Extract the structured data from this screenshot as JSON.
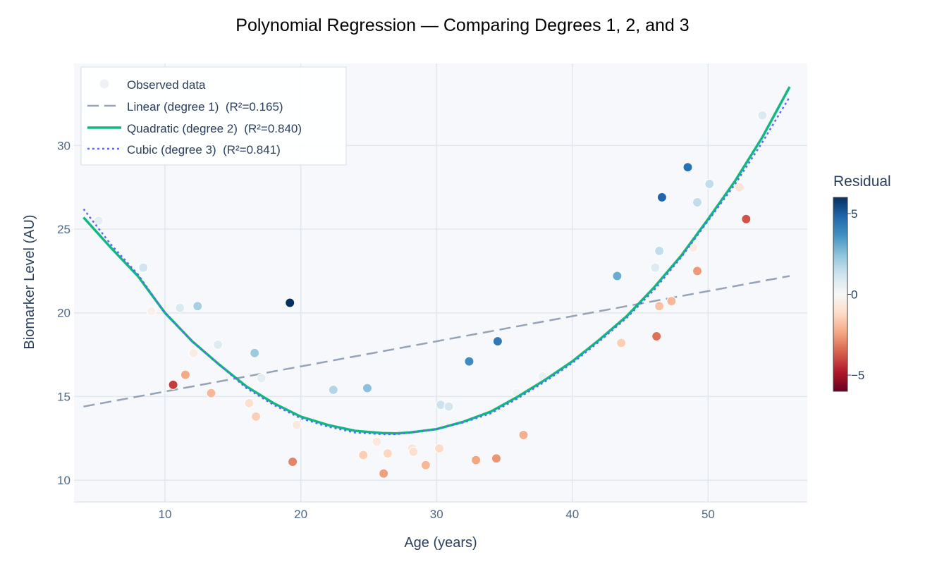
{
  "chart_data": {
    "type": "scatter",
    "title": "Polynomial Regression — Comparing Degrees 1, 2, and 3",
    "xlabel": "Age (years)",
    "ylabel": "Biomarker Level (AU)",
    "xlim": [
      3.3,
      57.3
    ],
    "ylim": [
      8.7,
      34.9
    ],
    "xticks": [
      10,
      20,
      30,
      40,
      50
    ],
    "yticks": [
      10,
      15,
      20,
      25,
      30
    ],
    "colorbar": {
      "title": "Residual",
      "range": [
        -6,
        6
      ],
      "ticks": [
        5,
        0,
        -5
      ],
      "tick_labels": [
        "5",
        "0",
        "−5"
      ]
    },
    "legend": {
      "position": "top-left",
      "entries": [
        {
          "key": "observed",
          "label": "Observed data"
        },
        {
          "key": "linear",
          "label": "Linear (degree 1)  (R²=0.165)"
        },
        {
          "key": "quadratic",
          "label": "Quadratic (degree 2)  (R²=0.840)"
        },
        {
          "key": "cubic",
          "label": "Cubic (degree 3)  (R²=0.841)"
        }
      ]
    },
    "points": [
      {
        "x": 5.1,
        "y": 25.5,
        "r": 0.6
      },
      {
        "x": 8.4,
        "y": 22.7,
        "r": 1.2
      },
      {
        "x": 9.0,
        "y": 20.1,
        "r": -0.3
      },
      {
        "x": 10.6,
        "y": 15.7,
        "r": -4.2
      },
      {
        "x": 11.1,
        "y": 20.3,
        "r": 0.9
      },
      {
        "x": 11.5,
        "y": 16.3,
        "r": -2.3
      },
      {
        "x": 12.1,
        "y": 17.6,
        "r": -0.5
      },
      {
        "x": 12.4,
        "y": 20.4,
        "r": 2.0
      },
      {
        "x": 13.4,
        "y": 15.2,
        "r": -2.0
      },
      {
        "x": 13.9,
        "y": 18.1,
        "r": 0.8
      },
      {
        "x": 16.2,
        "y": 14.6,
        "r": -1.0
      },
      {
        "x": 16.6,
        "y": 17.6,
        "r": 2.2
      },
      {
        "x": 16.7,
        "y": 13.8,
        "r": -1.5
      },
      {
        "x": 17.1,
        "y": 16.1,
        "r": 0.7
      },
      {
        "x": 19.2,
        "y": 20.6,
        "r": 6.0
      },
      {
        "x": 19.4,
        "y": 11.1,
        "r": -3.0
      },
      {
        "x": 19.7,
        "y": 13.3,
        "r": -0.6
      },
      {
        "x": 22.4,
        "y": 15.4,
        "r": 1.8
      },
      {
        "x": 24.6,
        "y": 11.5,
        "r": -1.5
      },
      {
        "x": 24.9,
        "y": 15.5,
        "r": 2.5
      },
      {
        "x": 25.6,
        "y": 12.3,
        "r": -0.7
      },
      {
        "x": 26.1,
        "y": 10.4,
        "r": -2.5
      },
      {
        "x": 26.4,
        "y": 11.6,
        "r": -1.3
      },
      {
        "x": 28.2,
        "y": 11.9,
        "r": -0.8
      },
      {
        "x": 28.3,
        "y": 11.7,
        "r": -1.0
      },
      {
        "x": 29.2,
        "y": 10.9,
        "r": -2.0
      },
      {
        "x": 30.2,
        "y": 11.9,
        "r": -1.2
      },
      {
        "x": 30.3,
        "y": 14.5,
        "r": 1.3
      },
      {
        "x": 30.9,
        "y": 14.4,
        "r": 1.1
      },
      {
        "x": 32.4,
        "y": 17.1,
        "r": 3.8
      },
      {
        "x": 32.9,
        "y": 11.2,
        "r": -2.4
      },
      {
        "x": 34.4,
        "y": 11.3,
        "r": -2.7
      },
      {
        "x": 34.5,
        "y": 18.3,
        "r": 4.3
      },
      {
        "x": 35.9,
        "y": 15.2,
        "r": 0.3
      },
      {
        "x": 36.4,
        "y": 12.7,
        "r": -2.2
      },
      {
        "x": 37.8,
        "y": 16.2,
        "r": 0.5
      },
      {
        "x": 43.3,
        "y": 22.2,
        "r": 3.0
      },
      {
        "x": 43.6,
        "y": 18.2,
        "r": -1.5
      },
      {
        "x": 46.1,
        "y": 22.7,
        "r": 0.8
      },
      {
        "x": 46.2,
        "y": 18.6,
        "r": -3.3
      },
      {
        "x": 46.4,
        "y": 23.7,
        "r": 1.5
      },
      {
        "x": 46.4,
        "y": 20.4,
        "r": -1.8
      },
      {
        "x": 46.6,
        "y": 26.9,
        "r": 4.8
      },
      {
        "x": 47.3,
        "y": 20.7,
        "r": -2.0
      },
      {
        "x": 48.5,
        "y": 28.7,
        "r": 4.5
      },
      {
        "x": 48.9,
        "y": 23.9,
        "r": -0.5
      },
      {
        "x": 49.2,
        "y": 26.6,
        "r": 1.5
      },
      {
        "x": 49.2,
        "y": 22.5,
        "r": -2.6
      },
      {
        "x": 50.1,
        "y": 27.7,
        "r": 1.5
      },
      {
        "x": 52.3,
        "y": 27.5,
        "r": -0.8
      },
      {
        "x": 52.8,
        "y": 25.6,
        "r": -3.8
      },
      {
        "x": 54.0,
        "y": 31.8,
        "r": 0.9
      }
    ],
    "fits": {
      "linear": [
        {
          "x": 4,
          "y": 14.4
        },
        {
          "x": 56,
          "y": 22.2
        }
      ],
      "quadratic": [
        {
          "x": 4,
          "y": 25.7
        },
        {
          "x": 6,
          "y": 23.9
        },
        {
          "x": 8,
          "y": 22.2
        },
        {
          "x": 10,
          "y": 20.0
        },
        {
          "x": 12,
          "y": 18.3
        },
        {
          "x": 14,
          "y": 16.9
        },
        {
          "x": 16,
          "y": 15.6
        },
        {
          "x": 18,
          "y": 14.6
        },
        {
          "x": 20,
          "y": 13.8
        },
        {
          "x": 22,
          "y": 13.3
        },
        {
          "x": 24,
          "y": 12.95
        },
        {
          "x": 26,
          "y": 12.82
        },
        {
          "x": 27,
          "y": 12.8
        },
        {
          "x": 28,
          "y": 12.85
        },
        {
          "x": 30,
          "y": 13.05
        },
        {
          "x": 32,
          "y": 13.5
        },
        {
          "x": 34,
          "y": 14.1
        },
        {
          "x": 36,
          "y": 15.0
        },
        {
          "x": 38,
          "y": 16.0
        },
        {
          "x": 40,
          "y": 17.1
        },
        {
          "x": 42,
          "y": 18.4
        },
        {
          "x": 44,
          "y": 19.8
        },
        {
          "x": 46,
          "y": 21.5
        },
        {
          "x": 48,
          "y": 23.4
        },
        {
          "x": 50,
          "y": 25.6
        },
        {
          "x": 52,
          "y": 27.9
        },
        {
          "x": 54,
          "y": 30.5
        },
        {
          "x": 56,
          "y": 33.5
        }
      ],
      "cubic": [
        {
          "x": 4,
          "y": 26.2
        },
        {
          "x": 6,
          "y": 24.1
        },
        {
          "x": 8,
          "y": 22.3
        },
        {
          "x": 10,
          "y": 20.0
        },
        {
          "x": 12,
          "y": 18.3
        },
        {
          "x": 14,
          "y": 16.9
        },
        {
          "x": 16,
          "y": 15.5
        },
        {
          "x": 18,
          "y": 14.5
        },
        {
          "x": 20,
          "y": 13.7
        },
        {
          "x": 22,
          "y": 13.2
        },
        {
          "x": 24,
          "y": 12.85
        },
        {
          "x": 26,
          "y": 12.75
        },
        {
          "x": 27,
          "y": 12.75
        },
        {
          "x": 28,
          "y": 12.83
        },
        {
          "x": 30,
          "y": 13.05
        },
        {
          "x": 32,
          "y": 13.45
        },
        {
          "x": 34,
          "y": 14.0
        },
        {
          "x": 36,
          "y": 14.9
        },
        {
          "x": 38,
          "y": 15.9
        },
        {
          "x": 40,
          "y": 17.0
        },
        {
          "x": 42,
          "y": 18.3
        },
        {
          "x": 44,
          "y": 19.7
        },
        {
          "x": 46,
          "y": 21.35
        },
        {
          "x": 48,
          "y": 23.3
        },
        {
          "x": 50,
          "y": 25.5
        },
        {
          "x": 52,
          "y": 27.7
        },
        {
          "x": 54,
          "y": 30.2
        },
        {
          "x": 56,
          "y": 32.9
        }
      ]
    },
    "colors": {
      "plot_bg": "#f6f8fb",
      "grid": "#e1e7ef",
      "linear": "#94a3b8",
      "quadratic": "#10b981",
      "cubic": "#6366f1",
      "text": "#2a3f5f",
      "tick_text": "#506784",
      "colorscale": [
        "#67001f",
        "#b2182b",
        "#d6604d",
        "#f4a582",
        "#fddbc7",
        "#f7f7f7",
        "#d1e5f0",
        "#92c5de",
        "#4393c3",
        "#2166ac",
        "#053061"
      ]
    }
  }
}
